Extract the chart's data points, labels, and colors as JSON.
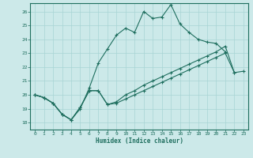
{
  "xlabel": "Humidex (Indice chaleur)",
  "xlim": [
    -0.5,
    23.5
  ],
  "ylim": [
    17.5,
    26.6
  ],
  "yticks": [
    18,
    19,
    20,
    21,
    22,
    23,
    24,
    25,
    26
  ],
  "xticks": [
    0,
    1,
    2,
    3,
    4,
    5,
    6,
    7,
    8,
    9,
    10,
    11,
    12,
    13,
    14,
    15,
    16,
    17,
    18,
    19,
    20,
    21,
    22,
    23
  ],
  "bg_color": "#cce9e9",
  "grid_color": "#a8d4d4",
  "line_color": "#1e6e5e",
  "line1_x": [
    0,
    1,
    2,
    3,
    4,
    5,
    6,
    7,
    8,
    9,
    10,
    11,
    12,
    13,
    14,
    15,
    16,
    17,
    18,
    19,
    20,
    21
  ],
  "line1_y": [
    20.0,
    19.8,
    19.4,
    18.6,
    18.2,
    19.0,
    20.5,
    22.3,
    23.3,
    24.3,
    24.8,
    24.5,
    26.0,
    25.5,
    25.6,
    26.5,
    25.1,
    24.5,
    24.0,
    23.8,
    23.7,
    23.1
  ],
  "line2_x": [
    0,
    1,
    2,
    3,
    4,
    5,
    6,
    7,
    8,
    9,
    10,
    11,
    12,
    13,
    14,
    15,
    16,
    17,
    18,
    19,
    20,
    21,
    22
  ],
  "line2_y": [
    20.0,
    19.8,
    19.4,
    18.6,
    18.2,
    19.1,
    20.3,
    20.3,
    19.3,
    19.5,
    20.0,
    20.3,
    20.7,
    21.0,
    21.3,
    21.6,
    21.9,
    22.2,
    22.5,
    22.8,
    23.1,
    23.5,
    21.6
  ],
  "line3_x": [
    0,
    1,
    2,
    3,
    4,
    5,
    6,
    7,
    8,
    9,
    10,
    11,
    12,
    13,
    14,
    15,
    16,
    17,
    18,
    19,
    20,
    21,
    22,
    23
  ],
  "line3_y": [
    20.0,
    19.8,
    19.4,
    18.6,
    18.2,
    19.1,
    20.3,
    20.3,
    19.3,
    19.4,
    19.7,
    20.0,
    20.3,
    20.6,
    20.9,
    21.2,
    21.5,
    21.8,
    22.1,
    22.4,
    22.7,
    23.0,
    21.6,
    21.7
  ]
}
